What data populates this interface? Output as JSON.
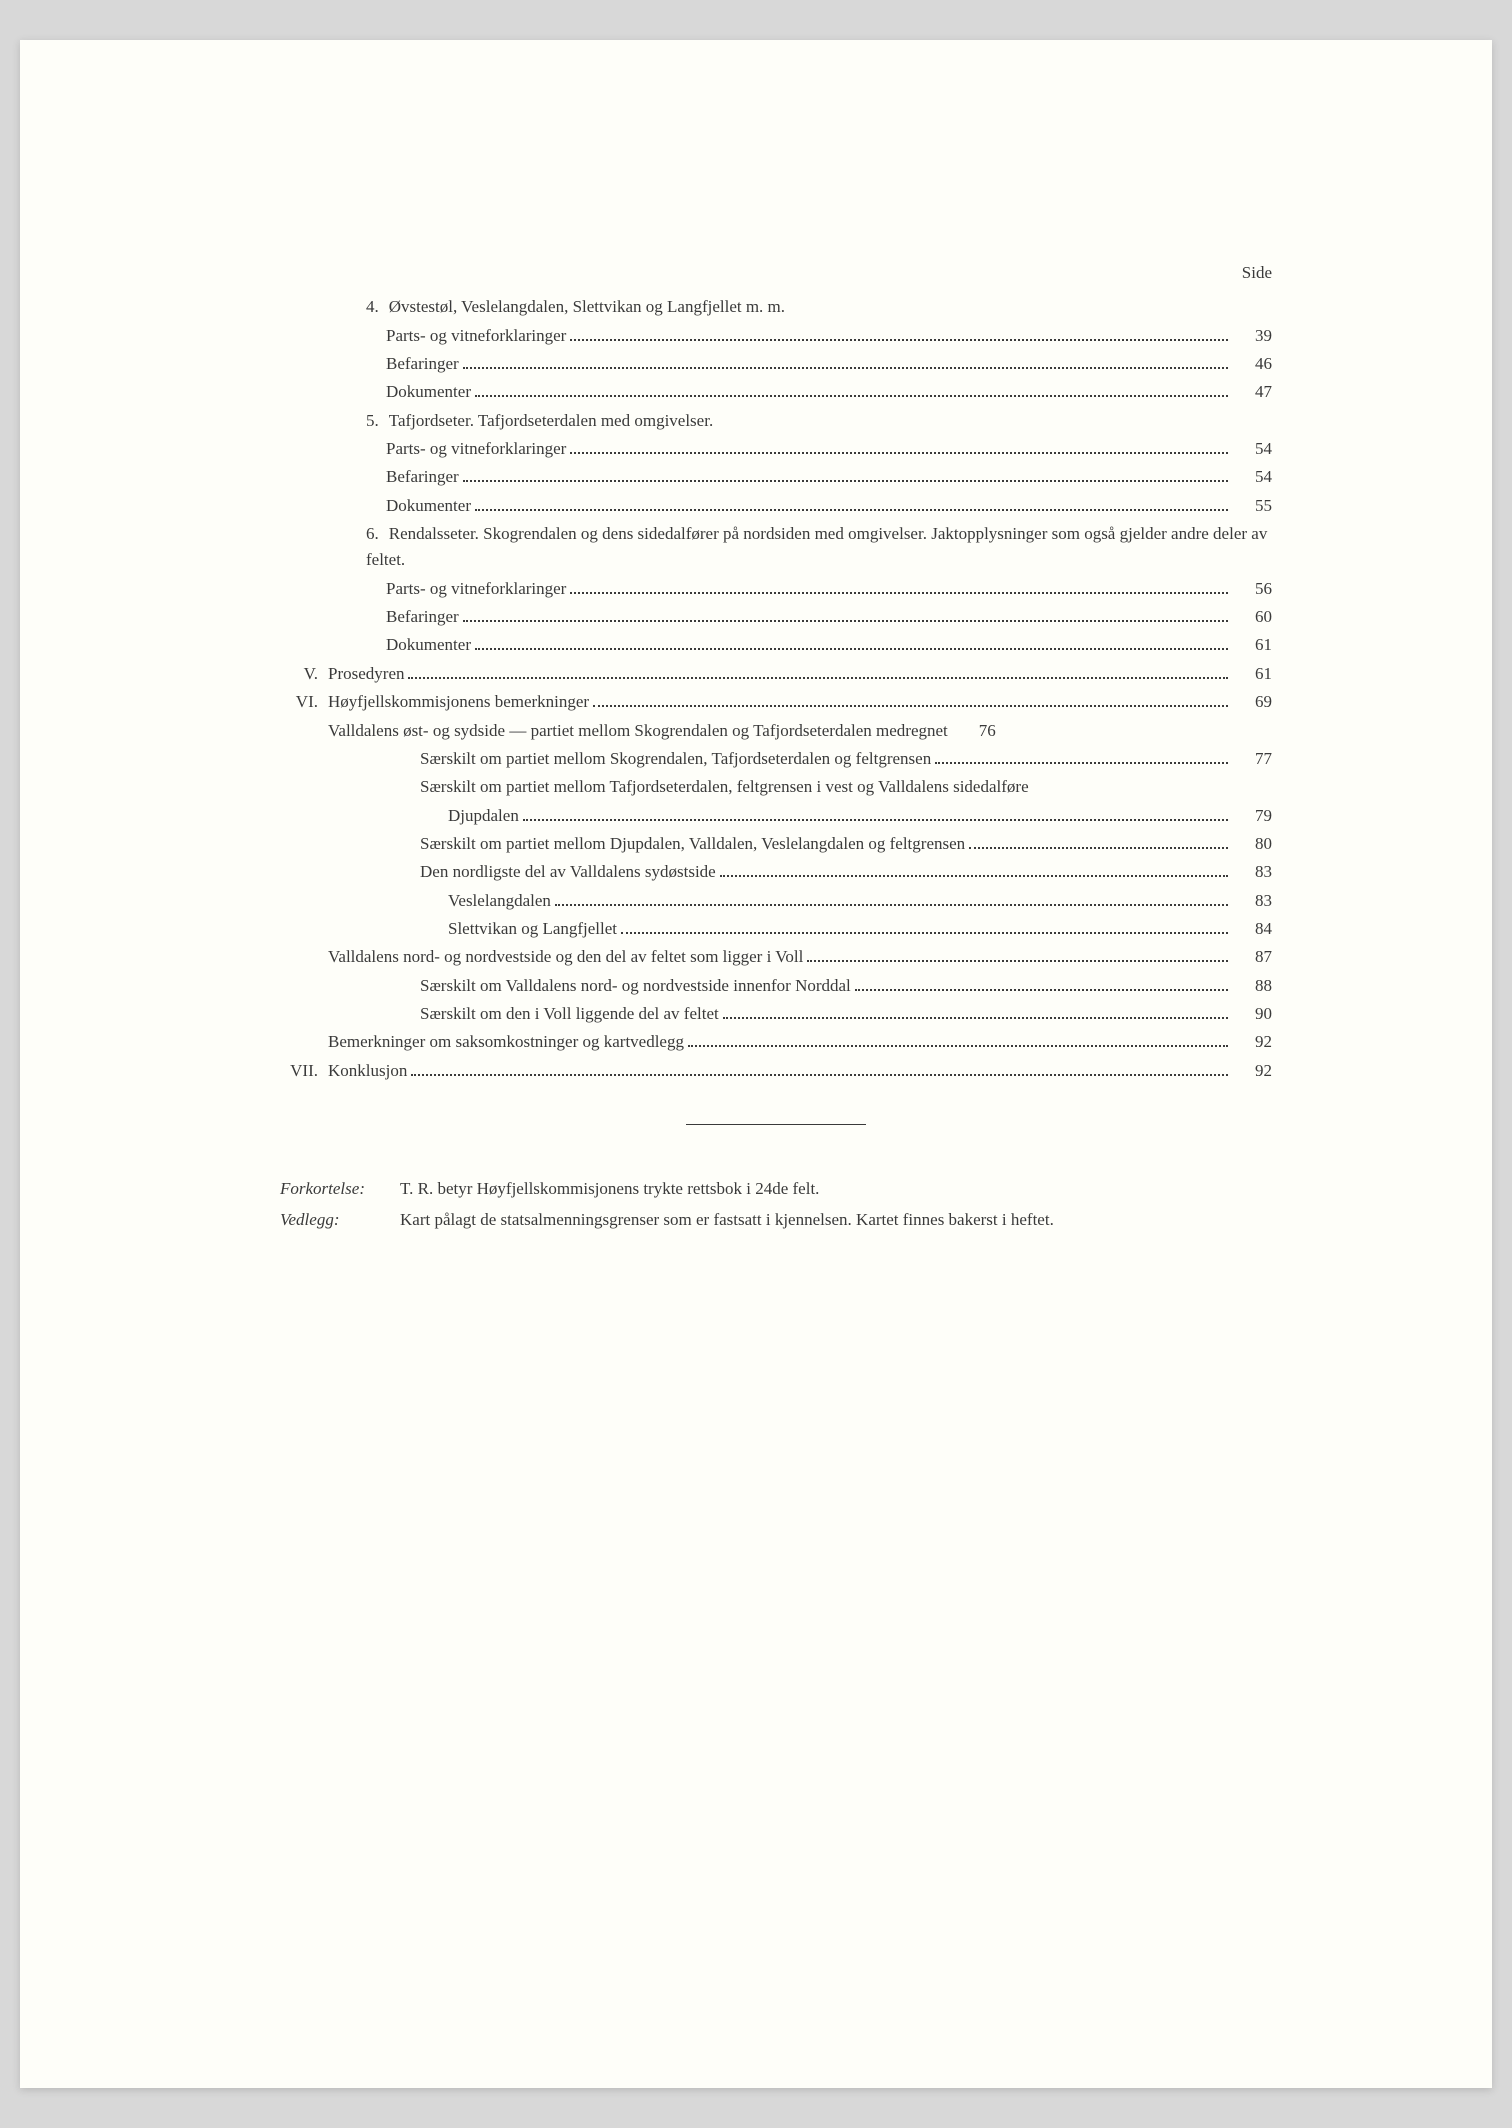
{
  "page": {
    "side_label": "Side",
    "text_color": "#3a3a3a",
    "background_color": "#fefef9",
    "font_family": "Georgia, Times New Roman, serif",
    "base_fontsize": 17
  },
  "toc": [
    {
      "type": "heading",
      "indent": 2,
      "num": "4.",
      "text": "Øvstestøl, Veslelangdalen, Slettvikan og Langfjellet m. m."
    },
    {
      "type": "entry",
      "indent": 3,
      "text": "Parts- og vitneforklaringer",
      "page": "39"
    },
    {
      "type": "entry",
      "indent": 3,
      "text": "Befaringer",
      "page": "46"
    },
    {
      "type": "entry",
      "indent": 3,
      "text": "Dokumenter",
      "page": "47"
    },
    {
      "type": "heading",
      "indent": 2,
      "num": "5.",
      "text": "Tafjordseter. Tafjordseterdalen med omgivelser."
    },
    {
      "type": "entry",
      "indent": 3,
      "text": "Parts- og vitneforklaringer",
      "page": "54"
    },
    {
      "type": "entry",
      "indent": 3,
      "text": "Befaringer",
      "page": "54"
    },
    {
      "type": "entry",
      "indent": 3,
      "text": "Dokumenter",
      "page": "55"
    },
    {
      "type": "heading",
      "indent": 2,
      "num": "6.",
      "text": "Rendalsseter. Skogrendalen og dens sidedalfører på nordsiden med omgivelser. Jaktopplysninger som også gjelder andre deler av feltet."
    },
    {
      "type": "entry",
      "indent": 3,
      "text": "Parts- og vitneforklaringer",
      "page": "56"
    },
    {
      "type": "entry",
      "indent": 3,
      "text": "Befaringer",
      "page": "60"
    },
    {
      "type": "entry",
      "indent": 3,
      "text": "Dokumenter",
      "page": "61"
    },
    {
      "type": "entry",
      "indent": 0,
      "roman": "V.",
      "text": "Prosedyren",
      "page": "61"
    },
    {
      "type": "entry",
      "indent": 0,
      "roman": "VI.",
      "text": "Høyfjellskommisjonens bemerkninger",
      "page": "69"
    },
    {
      "type": "entry",
      "indent": 1,
      "text": "Valldalens øst- og sydside — partiet mellom Skogrendalen og Tafjordseterdalen medregnet",
      "page": "76",
      "nodots": true
    },
    {
      "type": "entry",
      "indent": 4,
      "text": "Særskilt om partiet mellom Skogrendalen, Tafjordseterdalen og feltgrensen",
      "page": "77"
    },
    {
      "type": "wrap",
      "indent": 4,
      "text": "Særskilt om partiet mellom Tafjordseterdalen, feltgrensen i vest og Valldalens sidedalføre",
      "cont_indent": 5,
      "cont_text": "Djupdalen",
      "page": "79"
    },
    {
      "type": "entry",
      "indent": 4,
      "text": "Særskilt om partiet mellom Djupdalen, Valldalen, Veslelangdalen og feltgrensen",
      "page": "80"
    },
    {
      "type": "entry",
      "indent": 4,
      "text": "Den nordligste del av Valldalens sydøstside",
      "page": "83"
    },
    {
      "type": "entry",
      "indent": 5,
      "text": "Veslelangdalen",
      "page": "83"
    },
    {
      "type": "entry",
      "indent": 5,
      "text": "Slettvikan og Langfjellet",
      "page": "84"
    },
    {
      "type": "entry",
      "indent": 1,
      "text": "Valldalens nord- og nordvestside og den del av feltet som ligger i Voll",
      "page": "87"
    },
    {
      "type": "entry",
      "indent": 4,
      "text": "Særskilt om Valldalens nord- og nordvestside innenfor Norddal",
      "page": "88"
    },
    {
      "type": "entry",
      "indent": 4,
      "text": "Særskilt om den i Voll liggende del av feltet",
      "page": "90"
    },
    {
      "type": "entry",
      "indent": 1,
      "text": "Bemerkninger om saksomkostninger og kartvedlegg",
      "page": "92"
    },
    {
      "type": "entry",
      "indent": 0,
      "roman": "VII.",
      "text": "Konklusjon",
      "page": "92"
    }
  ],
  "notes": {
    "forkortelse_label": "Forkortelse:",
    "forkortelse_text": "T. R. betyr Høyfjellskommisjonens trykte rettsbok i 24de felt.",
    "vedlegg_label": "Vedlegg:",
    "vedlegg_text": "Kart pålagt de statsalmenningsgrenser som er fastsatt i kjennelsen. Kartet finnes bakerst i heftet."
  }
}
